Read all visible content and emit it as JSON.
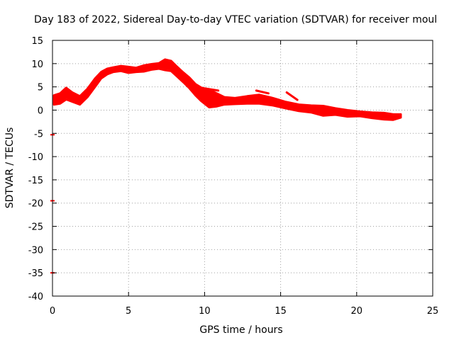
{
  "chart_data": {
    "type": "line",
    "title": "Day 183 of 2022, Sidereal Day-to-day VTEC variation (SDTVAR) for receiver moul",
    "xlabel": "GPS time / hours",
    "ylabel": "SDTVAR / TECUs",
    "xlim": [
      0,
      25
    ],
    "ylim": [
      -40,
      15
    ],
    "xticks": [
      0,
      5,
      10,
      15,
      20,
      25
    ],
    "yticks": [
      -40,
      -35,
      -30,
      -25,
      -20,
      -15,
      -10,
      -5,
      0,
      5,
      10,
      15
    ],
    "grid": true,
    "series": [
      {
        "name": "SDTVAR",
        "color": "#ff0000",
        "band_upper": [
          [
            0.1,
            3.2
          ],
          [
            0.5,
            3.6
          ],
          [
            0.9,
            4.8
          ],
          [
            1.3,
            3.8
          ],
          [
            1.8,
            3.0
          ],
          [
            2.3,
            4.6
          ],
          [
            2.8,
            6.8
          ],
          [
            3.2,
            8.2
          ],
          [
            3.6,
            8.9
          ],
          [
            4.0,
            9.2
          ],
          [
            4.5,
            9.5
          ],
          [
            5.0,
            9.3
          ],
          [
            5.5,
            9.1
          ],
          [
            6.0,
            9.6
          ],
          [
            6.5,
            9.9
          ],
          [
            7.0,
            10.1
          ],
          [
            7.4,
            10.9
          ],
          [
            7.8,
            10.6
          ],
          [
            8.2,
            9.3
          ],
          [
            8.6,
            8.1
          ],
          [
            9.0,
            7.0
          ],
          [
            9.4,
            5.6
          ],
          [
            9.8,
            4.8
          ],
          [
            10.3,
            4.4
          ],
          [
            10.8,
            3.6
          ],
          [
            11.3,
            2.8
          ],
          [
            12.0,
            2.6
          ],
          [
            12.8,
            3.0
          ],
          [
            13.6,
            3.3
          ],
          [
            14.5,
            2.6
          ],
          [
            15.3,
            1.8
          ],
          [
            16.2,
            1.2
          ],
          [
            17.0,
            1.0
          ],
          [
            17.8,
            0.9
          ],
          [
            18.6,
            0.4
          ],
          [
            19.4,
            0.0
          ],
          [
            20.2,
            -0.3
          ],
          [
            21.0,
            -0.5
          ],
          [
            21.8,
            -0.6
          ],
          [
            22.4,
            -0.9
          ],
          [
            22.9,
            -0.9
          ]
        ],
        "band_lower": [
          [
            0.1,
            1.2
          ],
          [
            0.5,
            1.4
          ],
          [
            0.9,
            2.3
          ],
          [
            1.3,
            1.8
          ],
          [
            1.8,
            1.2
          ],
          [
            2.3,
            2.8
          ],
          [
            2.8,
            5.0
          ],
          [
            3.2,
            6.8
          ],
          [
            3.6,
            7.7
          ],
          [
            4.0,
            8.2
          ],
          [
            4.5,
            8.4
          ],
          [
            5.0,
            8.0
          ],
          [
            5.5,
            8.2
          ],
          [
            6.0,
            8.3
          ],
          [
            6.5,
            8.7
          ],
          [
            7.0,
            8.9
          ],
          [
            7.4,
            8.6
          ],
          [
            7.8,
            8.4
          ],
          [
            8.2,
            7.2
          ],
          [
            8.6,
            6.0
          ],
          [
            9.0,
            4.7
          ],
          [
            9.4,
            3.2
          ],
          [
            9.8,
            1.9
          ],
          [
            10.3,
            0.6
          ],
          [
            10.8,
            0.8
          ],
          [
            11.3,
            1.2
          ],
          [
            12.0,
            1.3
          ],
          [
            12.8,
            1.4
          ],
          [
            13.6,
            1.4
          ],
          [
            14.5,
            1.0
          ],
          [
            15.3,
            0.4
          ],
          [
            16.2,
            -0.2
          ],
          [
            17.0,
            -0.5
          ],
          [
            17.8,
            -1.2
          ],
          [
            18.6,
            -1.0
          ],
          [
            19.4,
            -1.4
          ],
          [
            20.2,
            -1.3
          ],
          [
            21.0,
            -1.7
          ],
          [
            21.8,
            -2.0
          ],
          [
            22.4,
            -2.1
          ],
          [
            22.9,
            -1.6
          ]
        ],
        "outlier_segments": [
          [
            [
              13.4,
              4.2
            ],
            [
              14.2,
              3.6
            ]
          ],
          [
            [
              15.4,
              3.8
            ],
            [
              16.1,
              2.2
            ]
          ],
          [
            [
              9.6,
              4.9
            ],
            [
              10.9,
              4.2
            ]
          ]
        ],
        "isolated_points": [
          [
            0.0,
            -5.3
          ],
          [
            0.0,
            -19.5
          ],
          [
            0.0,
            -35.0
          ]
        ]
      }
    ]
  }
}
